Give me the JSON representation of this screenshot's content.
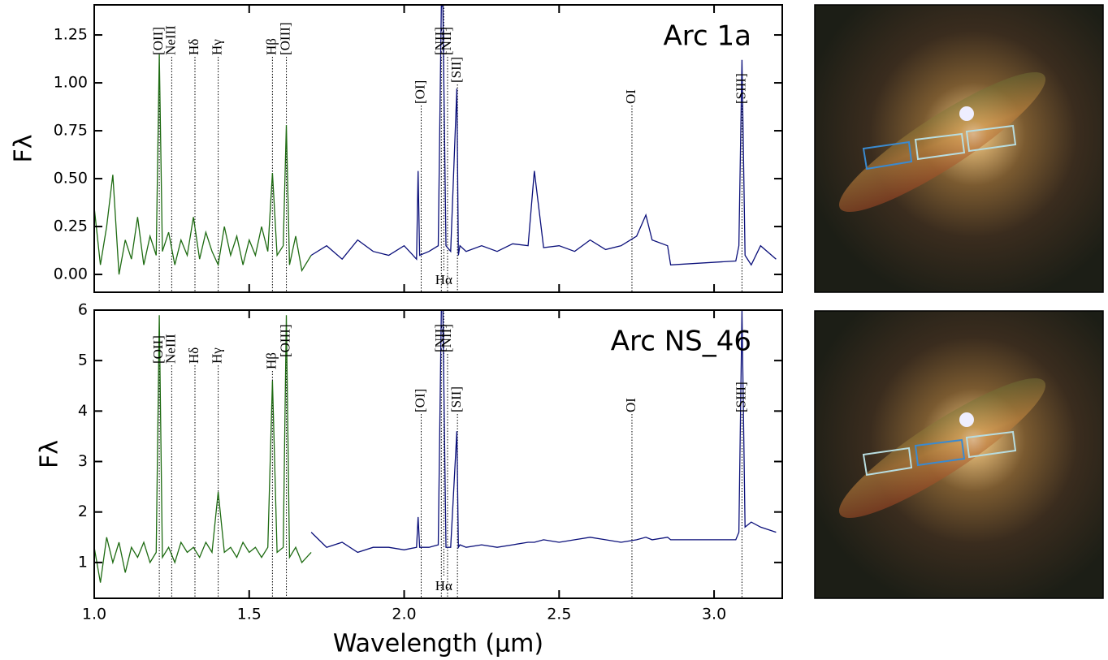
{
  "chart_data": [
    {
      "type": "line",
      "title": "Arc 1a",
      "ylabel": "Fλ",
      "xlim": [
        1.0,
        3.22
      ],
      "ylim": [
        -0.093,
        1.407
      ],
      "yticks": [
        {
          "value": 0,
          "label": "0.00"
        },
        0.25,
        {
          "value": 0.5,
          "label": "0.50"
        },
        0.75,
        {
          "value": 1,
          "label": "1.00"
        },
        1.25
      ],
      "series": [
        {
          "color": "#1e6b12",
          "x": [
            1.0,
            1.02,
            1.04,
            1.06,
            1.08,
            1.1,
            1.12,
            1.14,
            1.16,
            1.18,
            1.2,
            1.21,
            1.22,
            1.24,
            1.26,
            1.28,
            1.3,
            1.32,
            1.34,
            1.36,
            1.38,
            1.4,
            1.42,
            1.44,
            1.46,
            1.48,
            1.5,
            1.52,
            1.54,
            1.56,
            1.575,
            1.59,
            1.61,
            1.62,
            1.63,
            1.65,
            1.67,
            1.7
          ],
          "values": [
            0.35,
            0.05,
            0.25,
            0.52,
            0.0,
            0.18,
            0.08,
            0.3,
            0.05,
            0.2,
            0.1,
            1.15,
            0.12,
            0.22,
            0.05,
            0.18,
            0.1,
            0.3,
            0.08,
            0.22,
            0.12,
            0.05,
            0.25,
            0.1,
            0.2,
            0.05,
            0.18,
            0.1,
            0.25,
            0.12,
            0.53,
            0.1,
            0.15,
            0.78,
            0.05,
            0.2,
            0.02,
            0.1
          ]
        },
        {
          "color": "#0a0f7a",
          "x": [
            1.7,
            1.75,
            1.8,
            1.85,
            1.9,
            1.95,
            2.0,
            2.04,
            2.045,
            2.05,
            2.08,
            2.11,
            2.12,
            2.125,
            2.135,
            2.15,
            2.17,
            2.175,
            2.18,
            2.2,
            2.25,
            2.3,
            2.35,
            2.4,
            2.42,
            2.45,
            2.5,
            2.55,
            2.6,
            2.65,
            2.7,
            2.75,
            2.78,
            2.8,
            2.85,
            2.86,
            3.07,
            3.08,
            3.09,
            3.1,
            3.12,
            3.15,
            3.2
          ],
          "values": [
            0.1,
            0.15,
            0.08,
            0.18,
            0.12,
            0.1,
            0.15,
            0.08,
            0.54,
            0.1,
            0.12,
            0.15,
            1.4,
            1.4,
            0.15,
            0.12,
            0.97,
            0.1,
            0.15,
            0.12,
            0.15,
            0.12,
            0.16,
            0.15,
            0.54,
            0.14,
            0.15,
            0.12,
            0.18,
            0.13,
            0.15,
            0.2,
            0.31,
            0.18,
            0.15,
            0.05,
            0.07,
            0.15,
            1.12,
            0.1,
            0.05,
            0.15,
            0.08
          ]
        }
      ],
      "lines": [
        {
          "label": "[OII]",
          "x": 1.21
        },
        {
          "label": "NeIII",
          "x": 1.25
        },
        {
          "label": "Hδ",
          "x": 1.325
        },
        {
          "label": "Hγ",
          "x": 1.4
        },
        {
          "label": "Hβ",
          "x": 1.575
        },
        {
          "label": "[OIII]",
          "x": 1.62
        },
        {
          "label": "[OI]",
          "x": 2.055
        },
        {
          "label": "Hα",
          "x": 2.128
        },
        {
          "label": "[NII]",
          "x": 2.12
        },
        {
          "label": "[NII]",
          "x": 2.14
        },
        {
          "label": "[SII]",
          "x": 2.172
        },
        {
          "label": "OI",
          "x": 2.735
        },
        {
          "label": "[SIII]",
          "x": 3.09
        }
      ]
    },
    {
      "type": "line",
      "title": "Arc NS_46",
      "ylabel": "Fλ",
      "xlabel": "Wavelength (μm)",
      "xlim": [
        1.0,
        3.22
      ],
      "ylim": [
        0.29,
        6.0
      ],
      "xticks": [
        {
          "value": 1,
          "label": "1.0"
        },
        1.5,
        {
          "value": 2,
          "label": "2.0"
        },
        2.5,
        {
          "value": 3,
          "label": "3.0"
        }
      ],
      "yticks": [
        1,
        2,
        3,
        4,
        5,
        6
      ],
      "series": [
        {
          "color": "#1e6b12",
          "x": [
            1.0,
            1.02,
            1.04,
            1.06,
            1.08,
            1.1,
            1.12,
            1.14,
            1.16,
            1.18,
            1.2,
            1.21,
            1.22,
            1.24,
            1.26,
            1.28,
            1.3,
            1.32,
            1.34,
            1.36,
            1.38,
            1.4,
            1.42,
            1.44,
            1.46,
            1.48,
            1.5,
            1.52,
            1.54,
            1.56,
            1.575,
            1.59,
            1.61,
            1.62,
            1.63,
            1.65,
            1.67,
            1.7
          ],
          "values": [
            1.3,
            0.6,
            1.5,
            1.0,
            1.4,
            0.8,
            1.3,
            1.1,
            1.4,
            1.0,
            1.2,
            5.9,
            1.1,
            1.3,
            1.0,
            1.4,
            1.2,
            1.3,
            1.1,
            1.4,
            1.2,
            2.4,
            1.2,
            1.3,
            1.1,
            1.4,
            1.2,
            1.3,
            1.1,
            1.3,
            4.6,
            1.2,
            1.3,
            5.9,
            1.1,
            1.3,
            1.0,
            1.2
          ]
        },
        {
          "color": "#0a0f7a",
          "x": [
            1.7,
            1.75,
            1.8,
            1.85,
            1.9,
            1.95,
            2.0,
            2.04,
            2.045,
            2.05,
            2.08,
            2.11,
            2.12,
            2.125,
            2.135,
            2.15,
            2.17,
            2.175,
            2.18,
            2.2,
            2.25,
            2.3,
            2.35,
            2.4,
            2.42,
            2.45,
            2.5,
            2.55,
            2.6,
            2.65,
            2.7,
            2.75,
            2.78,
            2.8,
            2.85,
            2.86,
            3.07,
            3.08,
            3.09,
            3.1,
            3.12,
            3.15,
            3.2
          ],
          "values": [
            1.6,
            1.3,
            1.4,
            1.2,
            1.3,
            1.3,
            1.25,
            1.3,
            1.9,
            1.3,
            1.3,
            1.35,
            6.0,
            6.0,
            1.3,
            1.3,
            3.6,
            1.3,
            1.35,
            1.3,
            1.35,
            1.3,
            1.35,
            1.4,
            1.4,
            1.45,
            1.4,
            1.45,
            1.5,
            1.45,
            1.4,
            1.45,
            1.5,
            1.45,
            1.5,
            1.45,
            1.45,
            1.6,
            6.0,
            1.7,
            1.8,
            1.7,
            1.6
          ]
        }
      ],
      "lines": [
        {
          "label": "[OII]",
          "x": 1.21
        },
        {
          "label": "NeIII",
          "x": 1.25
        },
        {
          "label": "Hδ",
          "x": 1.325
        },
        {
          "label": "Hγ",
          "x": 1.4
        },
        {
          "label": "Hβ",
          "x": 1.575
        },
        {
          "label": "[OIII]",
          "x": 1.62
        },
        {
          "label": "[OI]",
          "x": 2.055
        },
        {
          "label": "Hα",
          "x": 2.128
        },
        {
          "label": "[NII]",
          "x": 2.12
        },
        {
          "label": "[NII]",
          "x": 2.14
        },
        {
          "label": "[SII]",
          "x": 2.172
        },
        {
          "label": "OI",
          "x": 2.735
        },
        {
          "label": "[SIII]",
          "x": 3.09
        }
      ]
    }
  ]
}
